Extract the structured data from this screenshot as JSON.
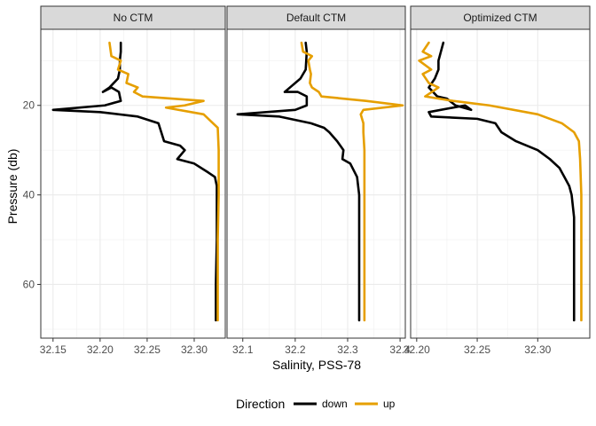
{
  "chart_data": {
    "type": "line",
    "title": "",
    "xlabel": "Salinity, PSS-78",
    "ylabel": "Pressure (db)",
    "y_reversed": true,
    "ylim": [
      72,
      3
    ],
    "y_ticks": [
      20,
      40,
      60
    ],
    "grid": true,
    "legend": {
      "title": "Direction",
      "position": "bottom",
      "entries": [
        {
          "name": "down",
          "color": "#000000"
        },
        {
          "name": "up",
          "color": "#E69F00"
        }
      ]
    },
    "panels": [
      {
        "label": "No CTM",
        "xlim": [
          32.137,
          32.333
        ],
        "x_ticks": [
          32.15,
          32.2,
          32.25,
          32.3
        ],
        "x_tick_labels": [
          "32.15",
          "32.20",
          "32.25",
          "32.30"
        ],
        "series": [
          {
            "name": "down",
            "points": [
              [
                32.222,
                6
              ],
              [
                32.222,
                8
              ],
              [
                32.221,
                10
              ],
              [
                32.221,
                12
              ],
              [
                32.219,
                14
              ],
              [
                32.21,
                16
              ],
              [
                32.203,
                17
              ],
              [
                32.212,
                16
              ],
              [
                32.22,
                17
              ],
              [
                32.222,
                19
              ],
              [
                32.205,
                20
              ],
              [
                32.15,
                21
              ],
              [
                32.2,
                21.5
              ],
              [
                32.24,
                22.5
              ],
              [
                32.262,
                24
              ],
              [
                32.265,
                26
              ],
              [
                32.268,
                28
              ],
              [
                32.285,
                29
              ],
              [
                32.29,
                30
              ],
              [
                32.282,
                32
              ],
              [
                32.3,
                33
              ],
              [
                32.315,
                35
              ],
              [
                32.322,
                36
              ],
              [
                32.324,
                38
              ],
              [
                32.324,
                42
              ],
              [
                32.324,
                50
              ],
              [
                32.323,
                60
              ],
              [
                32.323,
                68
              ]
            ]
          },
          {
            "name": "up",
            "points": [
              [
                32.21,
                6
              ],
              [
                32.212,
                9
              ],
              [
                32.222,
                10
              ],
              [
                32.219,
                12
              ],
              [
                32.23,
                13
              ],
              [
                32.228,
                15
              ],
              [
                32.24,
                16
              ],
              [
                32.236,
                17
              ],
              [
                32.245,
                18
              ],
              [
                32.31,
                19
              ],
              [
                32.29,
                20
              ],
              [
                32.27,
                20.5
              ],
              [
                32.31,
                22
              ],
              [
                32.32,
                24
              ],
              [
                32.325,
                25
              ],
              [
                32.326,
                30
              ],
              [
                32.326,
                40
              ],
              [
                32.325,
                50
              ],
              [
                32.325,
                60
              ],
              [
                32.325,
                68
              ]
            ]
          }
        ]
      },
      {
        "label": "Default CTM",
        "xlim": [
          32.07,
          32.41
        ],
        "x_ticks": [
          32.1,
          32.2,
          32.3,
          32.4
        ],
        "x_tick_labels": [
          "32.1",
          "32.2",
          "32.3",
          "32.4"
        ],
        "series": [
          {
            "name": "down",
            "points": [
              [
                32.22,
                6
              ],
              [
                32.222,
                8
              ],
              [
                32.221,
                10
              ],
              [
                32.22,
                12
              ],
              [
                32.21,
                14
              ],
              [
                32.19,
                16
              ],
              [
                32.18,
                17
              ],
              [
                32.205,
                17
              ],
              [
                32.222,
                18
              ],
              [
                32.222,
                20
              ],
              [
                32.2,
                21
              ],
              [
                32.09,
                22
              ],
              [
                32.17,
                22.5
              ],
              [
                32.23,
                24
              ],
              [
                32.255,
                25
              ],
              [
                32.265,
                26
              ],
              [
                32.28,
                28
              ],
              [
                32.292,
                30
              ],
              [
                32.29,
                32
              ],
              [
                32.305,
                33
              ],
              [
                32.318,
                36
              ],
              [
                32.322,
                40
              ],
              [
                32.322,
                50
              ],
              [
                32.322,
                60
              ],
              [
                32.322,
                68
              ]
            ]
          },
          {
            "name": "up",
            "points": [
              [
                32.212,
                6
              ],
              [
                32.215,
                8
              ],
              [
                32.232,
                9
              ],
              [
                32.225,
                10
              ],
              [
                32.228,
                12
              ],
              [
                32.23,
                13
              ],
              [
                32.228,
                15
              ],
              [
                32.232,
                16
              ],
              [
                32.245,
                17
              ],
              [
                32.25,
                18
              ],
              [
                32.335,
                19
              ],
              [
                32.405,
                20
              ],
              [
                32.33,
                21
              ],
              [
                32.325,
                22
              ],
              [
                32.33,
                24
              ],
              [
                32.33,
                26
              ],
              [
                32.332,
                30
              ],
              [
                32.332,
                40
              ],
              [
                32.332,
                50
              ],
              [
                32.332,
                60
              ],
              [
                32.332,
                68
              ]
            ]
          }
        ]
      },
      {
        "label": "Optimized CTM",
        "xlim": [
          32.195,
          32.343
        ],
        "x_ticks": [
          32.2,
          32.25,
          32.3
        ],
        "x_tick_labels": [
          "32.20",
          "32.25",
          "32.30"
        ],
        "series": [
          {
            "name": "down",
            "points": [
              [
                32.222,
                6
              ],
              [
                32.22,
                8
              ],
              [
                32.218,
                10
              ],
              [
                32.218,
                12
              ],
              [
                32.215,
                14
              ],
              [
                32.21,
                16
              ],
              [
                32.217,
                18
              ],
              [
                32.225,
                18.5
              ],
              [
                32.232,
                20
              ],
              [
                32.245,
                21
              ],
              [
                32.24,
                20
              ],
              [
                32.21,
                21.5
              ],
              [
                32.212,
                22.5
              ],
              [
                32.25,
                23
              ],
              [
                32.265,
                24
              ],
              [
                32.27,
                26
              ],
              [
                32.282,
                28
              ],
              [
                32.3,
                30
              ],
              [
                32.31,
                32
              ],
              [
                32.318,
                34
              ],
              [
                32.322,
                36
              ],
              [
                32.326,
                38
              ],
              [
                32.328,
                40
              ],
              [
                32.33,
                45
              ],
              [
                32.33,
                55
              ],
              [
                32.33,
                68
              ]
            ]
          },
          {
            "name": "up",
            "points": [
              [
                32.21,
                6
              ],
              [
                32.205,
                8
              ],
              [
                32.212,
                9
              ],
              [
                32.202,
                10
              ],
              [
                32.212,
                12
              ],
              [
                32.205,
                13
              ],
              [
                32.21,
                15
              ],
              [
                32.218,
                16
              ],
              [
                32.207,
                18
              ],
              [
                32.23,
                19
              ],
              [
                32.26,
                20
              ],
              [
                32.3,
                22
              ],
              [
                32.32,
                24
              ],
              [
                32.33,
                26
              ],
              [
                32.334,
                28
              ],
              [
                32.335,
                32
              ],
              [
                32.336,
                40
              ],
              [
                32.336,
                50
              ],
              [
                32.336,
                60
              ],
              [
                32.336,
                68
              ]
            ]
          }
        ]
      }
    ]
  }
}
